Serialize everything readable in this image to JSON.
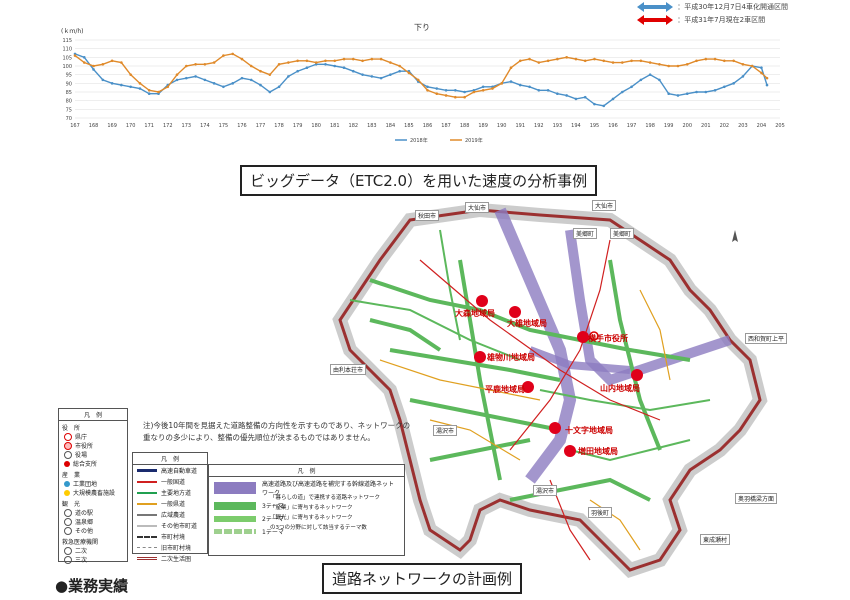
{
  "chart_data": {
    "type": "line",
    "title": "下り",
    "ylabel": "(ｋｍ/h)",
    "ylim": [
      70,
      115
    ],
    "yticks": [
      70,
      75,
      80,
      85,
      90,
      95,
      100,
      105,
      110,
      115
    ],
    "xlim": [
      167,
      205
    ],
    "xticks": [
      167,
      168,
      169,
      170,
      171,
      172,
      173,
      174,
      175,
      176,
      177,
      178,
      179,
      180,
      181,
      182,
      183,
      184,
      185,
      186,
      187,
      188,
      189,
      190,
      191,
      192,
      193,
      194,
      195,
      196,
      197,
      198,
      199,
      200,
      201,
      202,
      203,
      204,
      205
    ],
    "series": [
      {
        "name": "2018年",
        "color": "#4a90c8",
        "x": [
          167,
          167.5,
          168,
          168.5,
          169,
          169.5,
          170,
          170.5,
          171,
          171.5,
          172,
          172.5,
          173,
          173.5,
          174,
          174.5,
          175,
          175.5,
          176,
          176.5,
          177,
          177.5,
          178,
          178.5,
          179,
          179.5,
          180,
          180.5,
          181,
          181.5,
          182,
          182.5,
          183,
          183.5,
          184,
          184.5,
          185,
          185.5,
          186,
          186.5,
          187,
          187.5,
          188,
          188.5,
          189,
          189.5,
          190,
          190.5,
          191,
          191.5,
          192,
          192.5,
          193,
          193.5,
          194,
          194.5,
          195,
          195.5,
          196,
          196.5,
          197,
          197.5,
          198,
          198.5,
          199,
          199.5,
          200,
          200.5,
          201,
          201.5,
          202,
          202.5,
          203,
          203.5,
          204,
          204.3
        ],
        "y": [
          107,
          105,
          98,
          92,
          90,
          89,
          88,
          87,
          84,
          84,
          89,
          92,
          93,
          94,
          92,
          90,
          88,
          90,
          93,
          92,
          89,
          85,
          88,
          94,
          97,
          99,
          101,
          101,
          100,
          99,
          97,
          95,
          94,
          93,
          95,
          97,
          97,
          91,
          88,
          87,
          86,
          86,
          85,
          86,
          88,
          88,
          90,
          91,
          89,
          88,
          86,
          86,
          84,
          83,
          81,
          82,
          78,
          77,
          81,
          85,
          88,
          92,
          95,
          92,
          84,
          83,
          84,
          85,
          85,
          86,
          88,
          90,
          94,
          100,
          99,
          89
        ]
      },
      {
        "name": "2019年",
        "color": "#e08a2a",
        "x": [
          167,
          167.5,
          168,
          168.5,
          169,
          169.5,
          170,
          170.5,
          171,
          171.5,
          172,
          172.5,
          173,
          173.5,
          174,
          174.5,
          175,
          175.5,
          176,
          176.5,
          177,
          177.5,
          178,
          178.5,
          179,
          179.5,
          180,
          180.5,
          181,
          181.5,
          182,
          182.5,
          183,
          183.5,
          184,
          184.5,
          185,
          185.5,
          186,
          186.5,
          187,
          187.5,
          188,
          188.5,
          189,
          189.5,
          190,
          190.5,
          191,
          191.5,
          192,
          192.5,
          193,
          193.5,
          194,
          194.5,
          195,
          195.5,
          196,
          196.5,
          197,
          197.5,
          198,
          198.5,
          199,
          199.5,
          200,
          200.5,
          201,
          201.5,
          202,
          202.5,
          203,
          203.5,
          204,
          204.3
        ],
        "y": [
          106,
          102,
          100,
          101,
          103,
          102,
          95,
          90,
          86,
          85,
          88,
          95,
          100,
          101,
          101,
          102,
          106,
          107,
          104,
          100,
          97,
          95,
          101,
          102,
          103,
          103,
          102,
          103,
          103,
          104,
          104,
          103,
          104,
          104,
          102,
          100,
          96,
          92,
          86,
          84,
          83,
          82,
          82,
          85,
          86,
          87,
          90,
          99,
          103,
          104,
          102,
          103,
          104,
          105,
          104,
          103,
          104,
          103,
          102,
          102,
          103,
          103,
          102,
          101,
          100,
          100,
          101,
          103,
          104,
          104,
          103,
          103,
          101,
          100,
          96,
          93
        ]
      }
    ]
  },
  "top_legend": [
    {
      "label": "：平成30年12月7日4車化開通区間",
      "color": "#4a90c8"
    },
    {
      "label": "：平成31年7月現在2車区間",
      "color": "#e00000"
    }
  ],
  "caption1": "ビッグデータ（ETC2.0）を用いた速度の分析事例",
  "caption2": "道路ネットワークの計画例",
  "note_text": [
    "注)今後10年間を見据えた道路整備の方向性を示すものであり、ネットワークの",
    "重なりの多少により、整備の優先順位が決まるものではありません。"
  ],
  "legend_left": {
    "header": "凡　例",
    "sections": [
      {
        "title": "役　所",
        "items": [
          {
            "label": "県庁",
            "color": "#fff"
          },
          {
            "label": "市役所",
            "color": "#fbb"
          },
          {
            "label": "役場",
            "color": "#fff"
          },
          {
            "label": "総合支所",
            "color": "#d00"
          }
        ]
      },
      {
        "title": "産　業",
        "items": [
          {
            "label": "工業団地",
            "color": "#39c"
          },
          {
            "label": "大規模農畜施設",
            "color": "#fc0"
          }
        ]
      },
      {
        "title": "観　光",
        "items": [
          {
            "label": "道の駅",
            "color": "#fff"
          },
          {
            "label": "温泉郷",
            "color": "#fff"
          },
          {
            "label": "その他",
            "color": "#fff"
          }
        ]
      },
      {
        "title": "救急医療機関",
        "items": [
          {
            "label": "二次",
            "color": "#fff"
          },
          {
            "label": "三次",
            "color": "#fff"
          }
        ]
      }
    ]
  },
  "legend_mid": {
    "header": "凡　例",
    "items": [
      {
        "label": "高速自動車道",
        "color": "#1a2b6e"
      },
      {
        "label": "一般国道",
        "color": "#d02020"
      },
      {
        "label": "主要地方道",
        "color": "#20a050"
      },
      {
        "label": "一般県道",
        "color": "#e0a020"
      },
      {
        "label": "広域農道",
        "color": "#777777"
      },
      {
        "label": "その他市町道",
        "color": "#bbbbbb"
      },
      {
        "label": "市町村境",
        "color": "#333333"
      },
      {
        "label": "旧市町村境",
        "color": "#888888"
      },
      {
        "label": "二次生活圏",
        "color": "#9b3030"
      }
    ]
  },
  "legend_right": {
    "header": "凡　例",
    "items": [
      {
        "label": "高速道路及び高速道路を補完する幹線道路ネットワーク",
        "color": "#8c7cc0"
      },
      {
        "label": "3テーマ",
        "color": "#5cb85c"
      },
      {
        "label": "2テーマ",
        "color": "#7ccc6c"
      },
      {
        "label": "1テーマ",
        "color": "#9ed08e"
      }
    ],
    "themes": [
      "「暮らしの道」で連携する道路ネットワーク",
      "「産業」に寄与するネットワーク",
      "「観光」に寄与するネットワーク",
      "の3つの分野に対して該当するテーマ数"
    ]
  },
  "map_labels": {
    "regions": [
      "大森地域局",
      "大雄地域局",
      "雄物川地域局",
      "平鹿地域局",
      "横手市役所",
      "山内地域局",
      "十文字地域局",
      "増田地域局"
    ],
    "places": [
      "秋田市",
      "大仙市",
      "大仙市",
      "美郷町",
      "美郷町",
      "由利本荘市",
      "西和賀町上平",
      "湯沢市",
      "湯沢市",
      "羽後町",
      "東成瀬村",
      "奥羽橋梁方面"
    ]
  },
  "section_heading": "●業務実績"
}
